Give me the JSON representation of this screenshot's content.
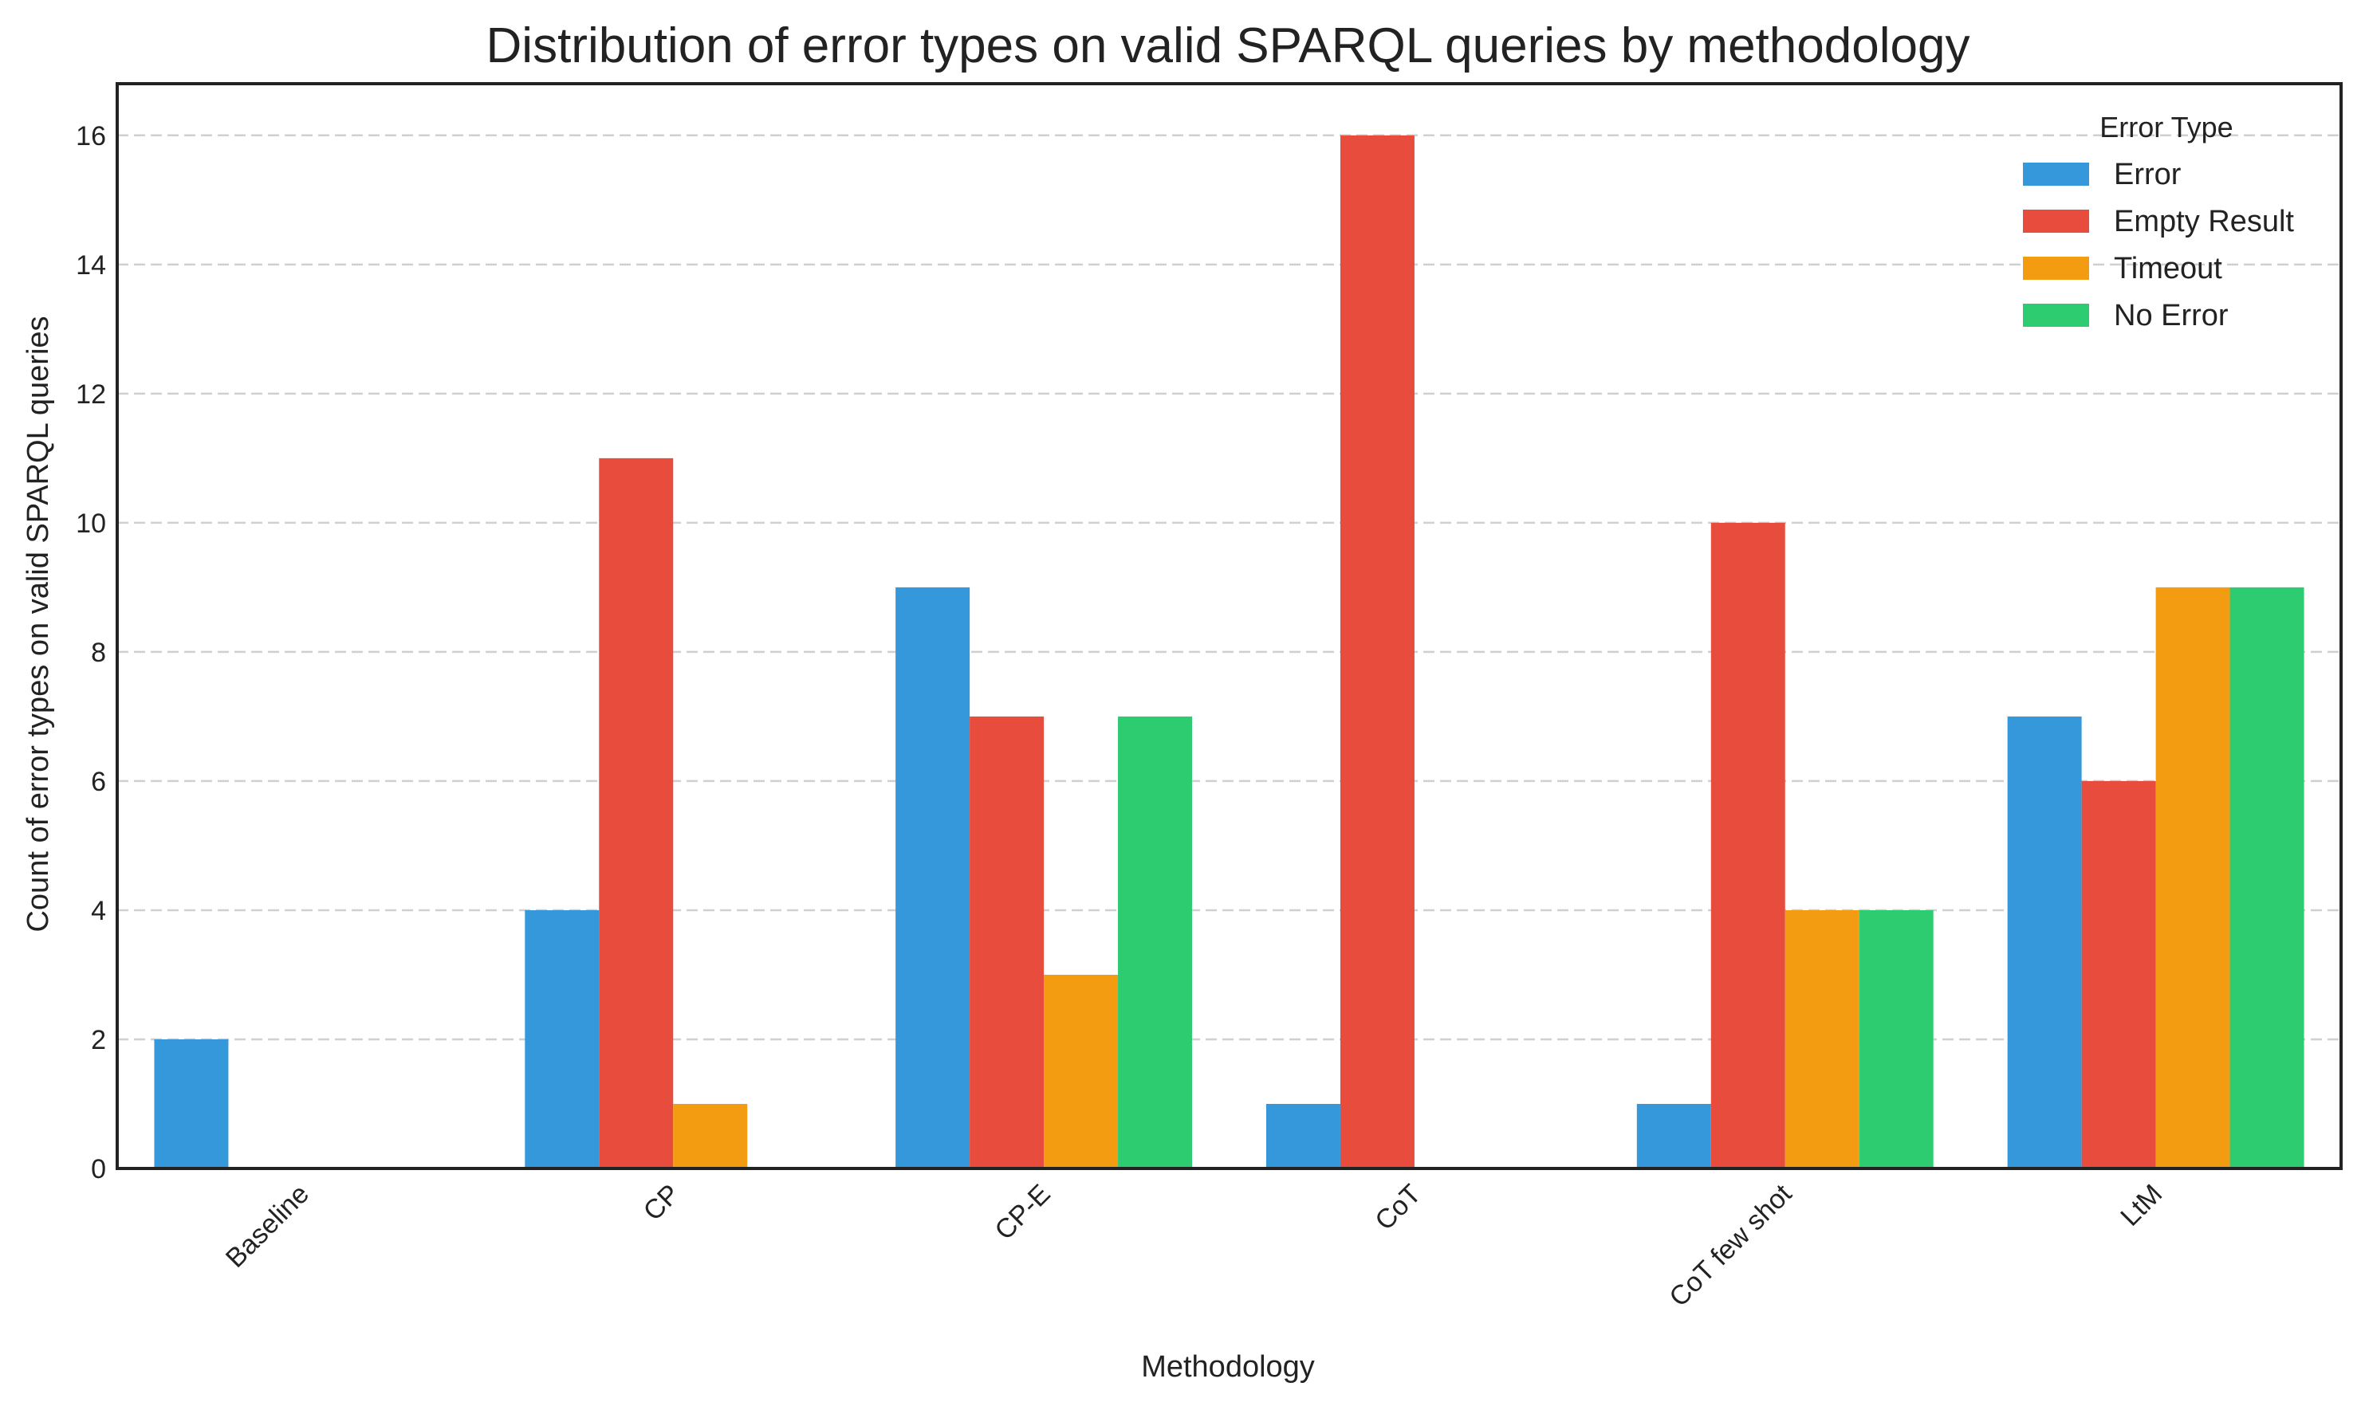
{
  "chart_data": {
    "type": "bar",
    "title": "Distribution of error types on valid SPARQL queries by methodology",
    "xlabel": "Methodology",
    "ylabel": "Count of error types on valid SPARQL queries",
    "categories": [
      "Baseline",
      "CP",
      "CP-E",
      "CoT",
      "CoT few shot",
      "LtM"
    ],
    "series": [
      {
        "name": "Error",
        "color": "#3498db",
        "values": [
          2,
          4,
          9,
          1,
          1,
          7
        ]
      },
      {
        "name": "Empty Result",
        "color": "#e74c3c",
        "values": [
          0,
          11,
          7,
          16,
          10,
          6
        ]
      },
      {
        "name": "Timeout",
        "color": "#f39c12",
        "values": [
          0,
          1,
          3,
          0,
          4,
          9
        ]
      },
      {
        "name": "No Error",
        "color": "#2ecc71",
        "values": [
          0,
          0,
          7,
          0,
          4,
          9
        ]
      }
    ],
    "ylim": [
      0,
      16.8
    ],
    "yticks": [
      0,
      2,
      4,
      6,
      8,
      10,
      12,
      14,
      16
    ],
    "grid": "horizontal dashed",
    "legend": {
      "title": "Error Type",
      "placement": "top-right"
    }
  }
}
